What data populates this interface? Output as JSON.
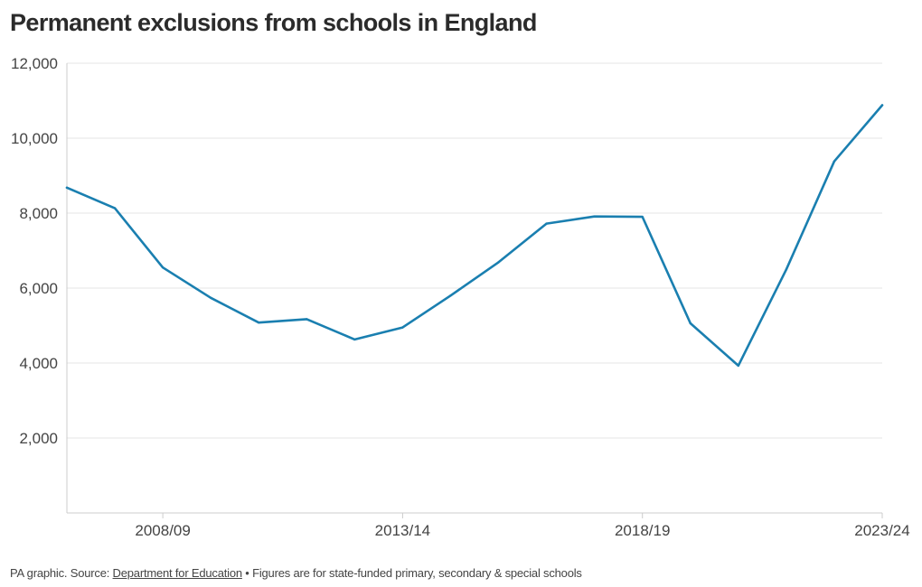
{
  "title": "Permanent exclusions from schools in England",
  "footer": {
    "prefix": "PA graphic. Source: ",
    "source_link": "Department for Education",
    "separator": " • ",
    "note": "Figures are for state-funded primary, secondary & special schools"
  },
  "colors": {
    "line": "#1a7fb0",
    "grid": "#e6e6e6",
    "axis": "#cccccc"
  },
  "chart_data": {
    "type": "line",
    "title": "Permanent exclusions from schools in England",
    "xlabel": "",
    "ylabel": "",
    "ylim": [
      0,
      12000
    ],
    "yticks": [
      2000,
      4000,
      6000,
      8000,
      10000,
      12000
    ],
    "ytick_labels": [
      "2,000",
      "4,000",
      "6,000",
      "8,000",
      "10,000",
      "12,000"
    ],
    "xtick_labels": [
      "2008/09",
      "2013/14",
      "2018/19",
      "2023/24"
    ],
    "grid": true,
    "series": [
      {
        "x": [
          "2006/07",
          "2007/08",
          "2008/09",
          "2009/10",
          "2010/11",
          "2011/12",
          "2012/13",
          "2013/14",
          "2014/15",
          "2015/16",
          "2016/17",
          "2017/18",
          "2018/19",
          "2019/20",
          "2020/21",
          "2021/22",
          "2022/23",
          "2023/24"
        ],
        "values": [
          8680,
          8130,
          6550,
          5740,
          5080,
          5170,
          4630,
          4950,
          5800,
          6690,
          7720,
          7910,
          7900,
          5060,
          3930,
          6500,
          9380,
          10880
        ]
      }
    ]
  }
}
